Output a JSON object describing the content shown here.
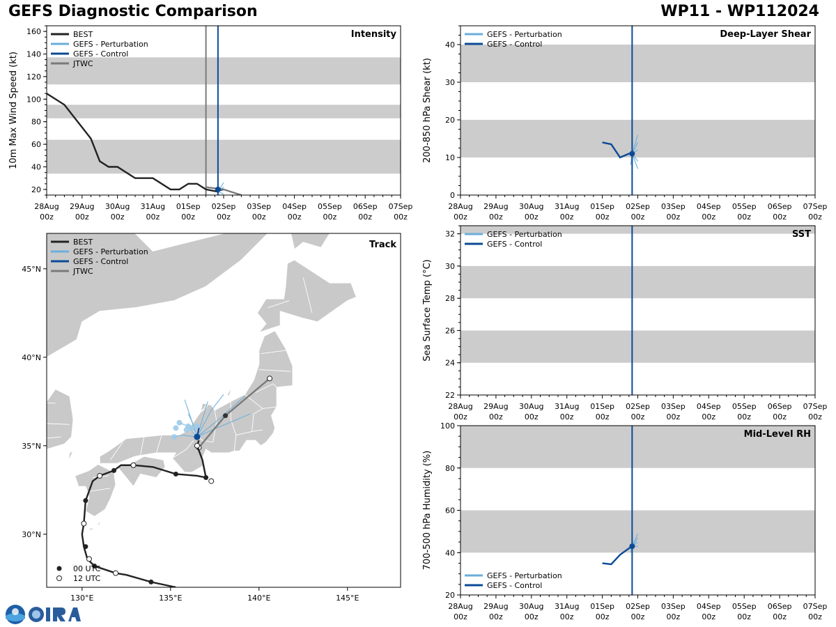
{
  "header": {
    "title": "GEFS Diagnostic Comparison",
    "storm_id": "WP11 - WP112024"
  },
  "colors": {
    "best": "#222222",
    "perturbation": "#6aaedb",
    "control": "#0b4a96",
    "jtwc": "#7a7a7a",
    "band": "#cccccc",
    "land": "#c9c9c9",
    "current_line": "#0b4a96"
  },
  "time_axis": {
    "dates": [
      "28Aug",
      "29Aug",
      "30Aug",
      "31Aug",
      "01Sep",
      "02Sep",
      "03Sep",
      "04Sep",
      "05Sep",
      "06Sep",
      "07Sep"
    ],
    "hours": [
      "00z",
      "00z",
      "00z",
      "00z",
      "00z",
      "00z",
      "00z",
      "00z",
      "00z",
      "00z",
      "00z"
    ],
    "current_day": 4.84
  },
  "chart_data": [
    {
      "id": "intensity",
      "type": "line",
      "title": "Intensity",
      "ylabel": "10m Max Wind Speed (kt)",
      "ylim": [
        15,
        165
      ],
      "yticks": [
        20,
        40,
        60,
        80,
        100,
        120,
        140,
        160
      ],
      "bands": [
        [
          34,
          64
        ],
        [
          83,
          95
        ],
        [
          113,
          137
        ]
      ],
      "legend": [
        "BEST",
        "GEFS - Perturbation",
        "GEFS - Control",
        "JTWC"
      ],
      "series": [
        {
          "name": "BEST",
          "x": [
            0,
            0.5,
            1.0,
            1.25,
            1.5,
            1.75,
            2.0,
            2.5,
            3.0,
            3.5,
            3.75,
            4.0,
            4.25,
            4.5,
            4.84
          ],
          "values": [
            105,
            95,
            75,
            65,
            45,
            40,
            40,
            30,
            30,
            20,
            20,
            25,
            25,
            20,
            18
          ]
        },
        {
          "name": "GEFS - Control",
          "x": [
            4.75,
            4.84,
            5.0
          ],
          "values": [
            21,
            19,
            20
          ]
        },
        {
          "name": "JTWC",
          "x": [
            4.5,
            5.0,
            5.5
          ],
          "values": [
            22,
            20,
            15
          ]
        }
      ],
      "ensemble": [
        {
          "x": [
            4.84,
            5.0
          ],
          "values": [
            18,
            26
          ]
        },
        {
          "x": [
            4.84,
            5.0
          ],
          "values": [
            18,
            22
          ]
        },
        {
          "x": [
            4.84,
            5.0
          ],
          "values": [
            18,
            16
          ]
        },
        {
          "x": [
            4.84,
            5.0
          ],
          "values": [
            18,
            20
          ]
        }
      ],
      "jtwc_time": 4.5
    },
    {
      "id": "shear",
      "type": "line",
      "title": "Deep-Layer Shear",
      "ylabel": "200-850 hPa Shear (kt)",
      "ylim": [
        0,
        45
      ],
      "yticks": [
        0,
        10,
        20,
        30,
        40
      ],
      "bands": [
        [
          10,
          20
        ],
        [
          30,
          40
        ]
      ],
      "legend": [
        "GEFS - Perturbation",
        "GEFS - Control"
      ],
      "series": [
        {
          "name": "GEFS - Control",
          "x": [
            4.0,
            4.25,
            4.5,
            4.75,
            4.84
          ],
          "values": [
            14,
            13.5,
            10,
            11,
            11
          ]
        }
      ],
      "ensemble": [
        {
          "x": [
            4.84,
            5.0
          ],
          "values": [
            11,
            16
          ]
        },
        {
          "x": [
            4.84,
            5.0
          ],
          "values": [
            11,
            14
          ]
        },
        {
          "x": [
            4.84,
            5.0
          ],
          "values": [
            11,
            12
          ]
        },
        {
          "x": [
            4.84,
            5.0
          ],
          "values": [
            11,
            9
          ]
        },
        {
          "x": [
            4.84,
            5.0
          ],
          "values": [
            11,
            7
          ]
        },
        {
          "x": [
            4.84,
            4.8
          ],
          "values": [
            11,
            8
          ]
        }
      ]
    },
    {
      "id": "sst",
      "type": "line",
      "title": "SST",
      "ylabel": "Sea Surface Temp (°C)",
      "ylim": [
        22,
        32.5
      ],
      "yticks": [
        22,
        24,
        26,
        28,
        30,
        32
      ],
      "bands": [
        [
          24,
          26
        ],
        [
          28,
          30
        ],
        [
          32,
          32.5
        ]
      ],
      "legend": [
        "GEFS - Perturbation",
        "GEFS - Control"
      ],
      "series": [],
      "ensemble": []
    },
    {
      "id": "rh",
      "type": "line",
      "title": "Mid-Level RH",
      "ylabel": "700-500 hPa Humidity (%)",
      "ylim": [
        20,
        100
      ],
      "yticks": [
        20,
        40,
        60,
        80,
        100
      ],
      "bands": [
        [
          40,
          60
        ],
        [
          80,
          100
        ]
      ],
      "legend": [
        "GEFS - Perturbation",
        "GEFS - Control"
      ],
      "series": [
        {
          "name": "GEFS - Control",
          "x": [
            4.0,
            4.25,
            4.5,
            4.75,
            4.84
          ],
          "values": [
            35,
            34.5,
            39,
            42,
            43
          ]
        }
      ],
      "ensemble": [
        {
          "x": [
            4.84,
            5.0
          ],
          "values": [
            43,
            49
          ]
        },
        {
          "x": [
            4.84,
            5.0
          ],
          "values": [
            43,
            47
          ]
        },
        {
          "x": [
            4.84,
            5.0
          ],
          "values": [
            43,
            45
          ]
        },
        {
          "x": [
            4.84,
            5.0
          ],
          "values": [
            43,
            43
          ]
        },
        {
          "x": [
            4.84,
            4.8
          ],
          "values": [
            43,
            40
          ]
        }
      ]
    },
    {
      "id": "track",
      "type": "scatter",
      "title": "Track",
      "xlim": [
        128,
        148
      ],
      "ylim": [
        27,
        47
      ],
      "xticks": [
        130,
        135,
        140,
        145
      ],
      "xtick_labels": [
        "130°E",
        "135°E",
        "140°E",
        "145°E"
      ],
      "yticks": [
        30,
        35,
        40,
        45
      ],
      "ytick_labels": [
        "30°N",
        "35°N",
        "40°N",
        "45°N"
      ],
      "legend": [
        "BEST",
        "GEFS - Perturbation",
        "GEFS - Control",
        "JTWC"
      ],
      "marker_legend": [
        "00 UTC",
        "12 UTC"
      ],
      "best_track": [
        [
          135.3,
          27.0
        ],
        [
          133.9,
          27.3
        ],
        [
          132.5,
          27.7
        ],
        [
          131.9,
          27.8
        ],
        [
          130.7,
          28.2
        ],
        [
          130.3,
          28.6
        ],
        [
          130.1,
          29.3
        ],
        [
          130.0,
          30.0
        ],
        [
          130.1,
          30.6
        ],
        [
          130.2,
          31.9
        ],
        [
          130.6,
          33.0
        ],
        [
          131.0,
          33.3
        ],
        [
          131.8,
          33.6
        ],
        [
          132.2,
          33.9
        ],
        [
          132.9,
          33.9
        ],
        [
          134.0,
          33.8
        ],
        [
          135.3,
          33.4
        ],
        [
          136.5,
          33.3
        ],
        [
          137.0,
          33.2
        ],
        [
          136.8,
          34.2
        ],
        [
          136.5,
          35.0
        ],
        [
          136.6,
          35.3
        ]
      ],
      "best_00utc": [
        [
          133.9,
          27.3
        ],
        [
          130.7,
          28.2
        ],
        [
          130.2,
          29.3
        ],
        [
          130.2,
          31.9
        ],
        [
          131.8,
          33.6
        ],
        [
          135.3,
          33.4
        ],
        [
          137.0,
          33.2
        ]
      ],
      "best_12utc": [
        [
          131.9,
          27.8
        ],
        [
          130.4,
          28.6
        ],
        [
          130.1,
          30.6
        ],
        [
          131.0,
          33.3
        ],
        [
          132.9,
          33.9
        ],
        [
          137.3,
          33.0
        ],
        [
          136.5,
          35.0
        ]
      ],
      "jtwc_track": [
        [
          136.6,
          34.9
        ],
        [
          138.1,
          36.7
        ],
        [
          140.6,
          38.8
        ]
      ],
      "jtwc_12utc": [
        [
          136.6,
          34.9
        ],
        [
          140.6,
          38.8
        ]
      ],
      "jtwc_00utc": [
        [
          138.1,
          36.7
        ]
      ],
      "control": [
        [
          136.5,
          35.5
        ],
        [
          136.6,
          36.0
        ]
      ],
      "ensemble_tracks": [
        [
          [
            136.5,
            35.5
          ],
          [
            136.0,
            36.1
          ],
          [
            135.5,
            36.3
          ]
        ],
        [
          [
            136.5,
            35.5
          ],
          [
            137.5,
            36.3
          ],
          [
            139.2,
            37.8
          ]
        ],
        [
          [
            136.5,
            35.5
          ],
          [
            137.6,
            36.0
          ],
          [
            139.5,
            36.8
          ]
        ],
        [
          [
            136.5,
            35.5
          ],
          [
            136.0,
            37.0
          ],
          [
            135.8,
            37.6
          ]
        ],
        [
          [
            136.5,
            35.5
          ],
          [
            136.9,
            36.8
          ],
          [
            137.1,
            37.5
          ]
        ],
        [
          [
            136.5,
            35.5
          ],
          [
            137.3,
            37.0
          ],
          [
            138.0,
            37.9
          ]
        ],
        [
          [
            136.5,
            35.5
          ],
          [
            135.6,
            35.6
          ],
          [
            135.2,
            35.5
          ]
        ],
        [
          [
            136.5,
            35.5
          ],
          [
            136.2,
            36.4
          ],
          [
            136.0,
            36.8
          ]
        ]
      ],
      "ensemble_points": [
        [
          135.5,
          36.3
        ],
        [
          136.0,
          36.1
        ],
        [
          135.3,
          36.0
        ],
        [
          135.2,
          35.5
        ],
        [
          136.2,
          36.0
        ],
        [
          135.9,
          35.9
        ],
        [
          136.5,
          36.1
        ]
      ]
    }
  ]
}
